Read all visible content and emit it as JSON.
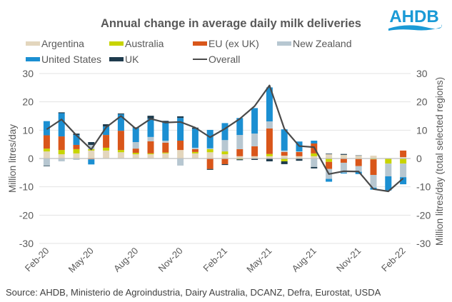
{
  "title": "Annual change in average daily milk deliveries",
  "logo": {
    "text": "AHDB",
    "icon": "ahdb-wave-logo",
    "color": "#1a9ad6"
  },
  "source": "Source: AHDB, Ministerio de Agroindustria, Dairy Australia, DCANZ, Defra, Eurostat, USDA",
  "legend": [
    {
      "name": "Argentina",
      "color": "#e3d6bd",
      "type": "bar"
    },
    {
      "name": "Australia",
      "color": "#c8d400",
      "type": "bar"
    },
    {
      "name": "EU (ex UK)",
      "color": "#d9561a",
      "type": "bar"
    },
    {
      "name": "New Zealand",
      "color": "#b7c7d1",
      "type": "bar"
    },
    {
      "name": "United States",
      "color": "#1b8fd2",
      "type": "bar"
    },
    {
      "name": "UK",
      "color": "#1e3b4d",
      "type": "bar"
    },
    {
      "name": "Overall",
      "color": "#4a4a4a",
      "type": "line"
    }
  ],
  "chart_data": {
    "type": "bar",
    "subtype": "stacked-bar-with-line",
    "title": "Annual change in average daily milk deliveries",
    "xlabel": "",
    "ylabel": "Million litres/day",
    "y2label": "Million litres/day (total selected regions)",
    "ylim": [
      -30,
      30
    ],
    "y2lim": [
      -30,
      30
    ],
    "yticks": [
      "30",
      "20",
      "10",
      "0",
      "-10",
      "-20",
      "-30"
    ],
    "y2ticks": [
      "30",
      "20",
      "10",
      "0",
      "-10",
      "-20",
      "-30"
    ],
    "yticks_values": [
      30,
      20,
      10,
      0,
      -10,
      -20,
      -30
    ],
    "grid": true,
    "legend_position": "top",
    "categories": [
      "Feb-20",
      "Mar-20",
      "Apr-20",
      "May-20",
      "Jun-20",
      "Jul-20",
      "Aug-20",
      "Sep-20",
      "Oct-20",
      "Nov-20",
      "Dec-20",
      "Jan-21",
      "Feb-21",
      "Mar-21",
      "Apr-21",
      "May-21",
      "Jun-21",
      "Jul-21",
      "Aug-21",
      "Sep-21",
      "Oct-21",
      "Nov-21",
      "Dec-21",
      "Jan-22",
      "Feb-22"
    ],
    "xtick_labels": [
      "Feb-20",
      "May-20",
      "Aug-20",
      "Nov-20",
      "Feb-21",
      "May-21",
      "Aug-21",
      "Nov-21",
      "Feb-22"
    ],
    "xtick_indices": [
      0,
      3,
      6,
      9,
      12,
      15,
      18,
      21,
      24
    ],
    "series": [
      {
        "name": "Argentina",
        "color": "#e3d6bd",
        "values": [
          2.5,
          1.5,
          1.8,
          2.8,
          2.8,
          2.2,
          1.5,
          1.5,
          1.8,
          3.0,
          1.8,
          2.2,
          1.5,
          0.8,
          0.8,
          0.8,
          1.0,
          0.8,
          0.8,
          1.5,
          1.3,
          1.0,
          1.0,
          0.0,
          0.5
        ]
      },
      {
        "name": "Australia",
        "color": "#c8d400",
        "values": [
          1.0,
          1.5,
          1.5,
          0.5,
          1.0,
          0.8,
          0.5,
          0.3,
          0.3,
          0.0,
          0.5,
          1.1,
          1.0,
          -0.3,
          0.0,
          0.8,
          -1.0,
          0.0,
          1.0,
          -1.2,
          0.0,
          -0.2,
          -0.3,
          -1.8,
          -1.8
        ]
      },
      {
        "name": "EU (ex UK)",
        "color": "#d9561a",
        "values": [
          4.7,
          4.8,
          1.5,
          -0.3,
          4.5,
          6.8,
          1.5,
          4.3,
          3.5,
          3.3,
          1.0,
          -3.7,
          -2.0,
          2.5,
          3.5,
          9.0,
          1.3,
          1.5,
          3.5,
          -2.5,
          -1.5,
          -2.5,
          -5.5,
          0.0,
          2.3
        ]
      },
      {
        "name": "New Zealand",
        "color": "#b7c7d1",
        "values": [
          -2.5,
          -1.0,
          -0.5,
          1.5,
          0.0,
          0.0,
          2.3,
          1.5,
          0.7,
          -2.5,
          0.5,
          0.3,
          4.0,
          5.0,
          4.5,
          2.5,
          0.5,
          0.2,
          -3.0,
          -3.5,
          -3.5,
          -2.0,
          -4.5,
          -4.5,
          -4.8
        ]
      },
      {
        "name": "United States",
        "color": "#1b8fd2",
        "values": [
          5.0,
          8.2,
          3.5,
          -1.8,
          3.0,
          5.8,
          5.0,
          6.5,
          6.5,
          8.0,
          6.7,
          6.5,
          6.0,
          6.0,
          9.0,
          12.0,
          7.5,
          3.5,
          1.0,
          -1.0,
          -0.3,
          -0.8,
          -0.7,
          -5.0,
          -2.5
        ]
      },
      {
        "name": "UK",
        "color": "#1e3b4d",
        "values": [
          -0.2,
          0.3,
          0.5,
          1.0,
          0.8,
          0.3,
          0.2,
          1.0,
          0.5,
          0.6,
          0.4,
          -0.3,
          -0.3,
          -0.3,
          -0.5,
          -1.0,
          -1.0,
          -0.8,
          -0.5,
          0.2,
          0.3,
          0.1,
          0.0,
          0.0,
          0.0
        ]
      }
    ],
    "line_series": {
      "name": "Overall",
      "color": "#4a4a4a",
      "axis": "secondary",
      "values": [
        10.3,
        13.8,
        8.2,
        3.2,
        11.0,
        15.0,
        10.5,
        14.0,
        12.7,
        12.9,
        10.9,
        7.5,
        10.5,
        14.0,
        18.5,
        25.8,
        10.5,
        4.4,
        4.0,
        -5.5,
        -4.5,
        -4.6,
        -10.8,
        -11.6,
        -7.0
      ]
    }
  }
}
